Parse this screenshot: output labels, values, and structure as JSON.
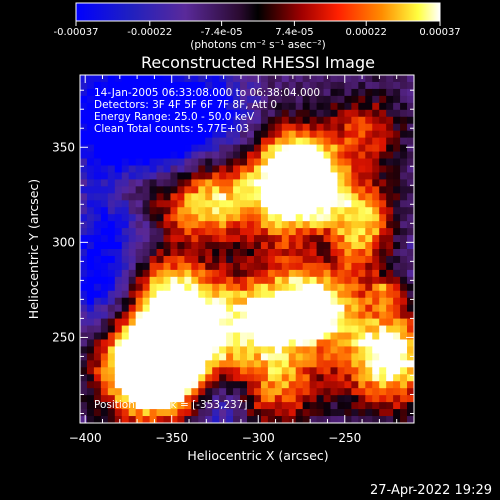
{
  "colorbar": {
    "ticks": [
      "-0.00037",
      "-0.00022",
      "-7.4e-05",
      "7.4e-05",
      "0.00022",
      "0.00037"
    ],
    "tick_values": [
      -0.00037,
      -0.00022,
      -7.4e-05,
      7.4e-05,
      0.00022,
      0.00037
    ],
    "range": [
      -0.00037,
      0.00037
    ],
    "units_label": "(photons cm⁻² s⁻¹ asec⁻²)"
  },
  "chart_data": {
    "type": "heatmap",
    "title": "Reconstructed RHESSI Image",
    "xlabel": "Heliocentric X (arcsec)",
    "ylabel": "Heliocentric Y (arcsec)",
    "xlim": [
      -403,
      -210
    ],
    "ylim": [
      205,
      388
    ],
    "x_ticks": [
      -400,
      -350,
      -300,
      -250
    ],
    "y_ticks": [
      250,
      300,
      350
    ],
    "colormap": "rhessi-blue-purple-red-yellow-white",
    "color_stops": [
      "#0000ff",
      "#2a1050",
      "#7a3aa0",
      "#000000",
      "#a00000",
      "#ff2000",
      "#ff8000",
      "#ffff40",
      "#ffffff"
    ],
    "annotations": [
      "14-Jan-2005 06:33:08.000 to 06:38:04.000",
      "Detectors: 3F 4F 5F 6F 7F 8F, Att 0",
      "Energy Range: 25.0 - 50.0 keV",
      "Clean     Total counts: 5.77E+03"
    ],
    "peak_label": "Position of Peak = [-353,237]",
    "peak": [
      -353,
      237
    ]
  },
  "footer": {
    "date": "27-Apr-2022 19:29"
  }
}
